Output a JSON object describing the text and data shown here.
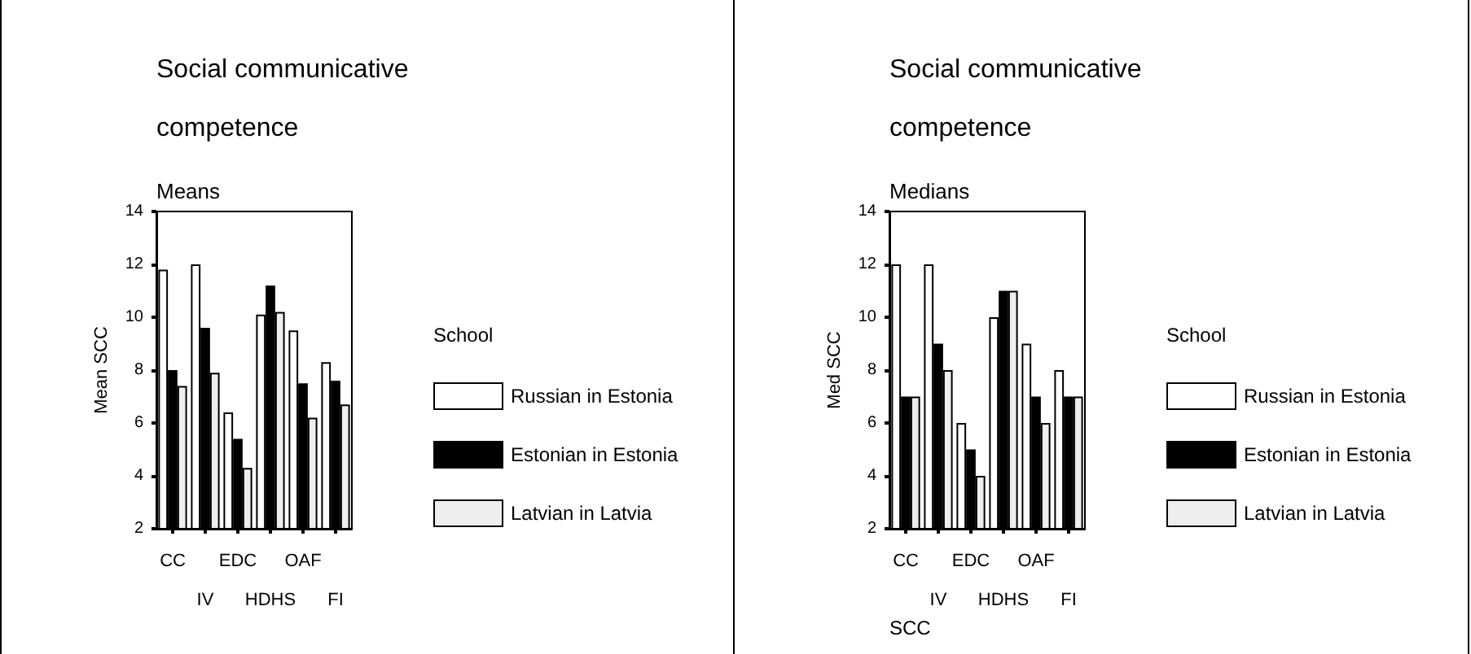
{
  "chart_data": [
    {
      "type": "bar",
      "title": "Social communicative competence",
      "subtitle": "Means",
      "ylabel": "Mean SCC",
      "legend_title": "School",
      "categories": [
        "CC",
        "IV",
        "EDC",
        "HDHS",
        "OAF",
        "FI"
      ],
      "series": [
        {
          "name": "Russian in Estonia",
          "color": "#ffffff",
          "values": [
            11.8,
            12.0,
            6.4,
            10.1,
            9.5,
            8.3
          ]
        },
        {
          "name": "Estonian in Estonia",
          "color": "#000000",
          "values": [
            8.0,
            9.6,
            5.4,
            11.2,
            7.5,
            7.6
          ]
        },
        {
          "name": "Latvian in Latvia",
          "color": "#eeeeee",
          "values": [
            7.4,
            7.9,
            4.3,
            10.2,
            6.2,
            6.7
          ]
        }
      ],
      "ylim": [
        2,
        14
      ],
      "yticks": [
        2,
        4,
        6,
        8,
        10,
        12,
        14
      ],
      "legend": "right"
    },
    {
      "type": "bar",
      "title": "Social communicative competence",
      "subtitle": "Medians",
      "ylabel": "Med SCC",
      "xlabel": "SCC",
      "legend_title": "School",
      "categories": [
        "CC",
        "IV",
        "EDC",
        "HDHS",
        "OAF",
        "FI"
      ],
      "series": [
        {
          "name": "Russian in Estonia",
          "color": "#ffffff",
          "values": [
            12,
            12,
            6,
            10,
            9,
            8
          ]
        },
        {
          "name": "Estonian in Estonia",
          "color": "#000000",
          "values": [
            7,
            9,
            5,
            11,
            7,
            7
          ]
        },
        {
          "name": "Latvian in Latvia",
          "color": "#eeeeee",
          "values": [
            7,
            8,
            4,
            11,
            6,
            7
          ]
        }
      ],
      "ylim": [
        2,
        14
      ],
      "yticks": [
        2,
        4,
        6,
        8,
        10,
        12,
        14
      ],
      "legend": "right"
    }
  ]
}
